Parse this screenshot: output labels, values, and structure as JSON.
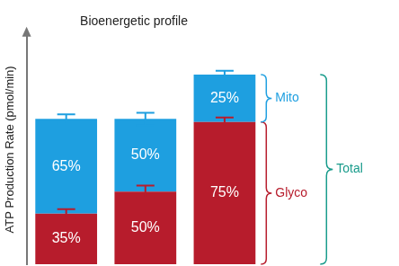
{
  "chart_data": {
    "type": "bar",
    "title": "Bioenergetic profile",
    "y_label": "ATP Production Rate (pmol/min)",
    "categories": [
      null,
      null,
      null
    ],
    "series": [
      {
        "name": "Glyco",
        "color": "#b71c2c",
        "values": [
          66,
          95,
          186
        ],
        "errors": [
          6,
          8,
          6
        ],
        "segment_labels": [
          "35%",
          "50%",
          "75%"
        ]
      },
      {
        "name": "Mito",
        "color": "#1e9fe0",
        "values": [
          124,
          95,
          62
        ],
        "errors": [
          6,
          8,
          5
        ],
        "segment_labels": [
          "65%",
          "50%",
          "25%"
        ]
      }
    ],
    "total_label": "Total",
    "stacked": true,
    "ylim": [
      0,
      300
    ],
    "yticks": [],
    "tick_labels": false,
    "grid": false
  }
}
